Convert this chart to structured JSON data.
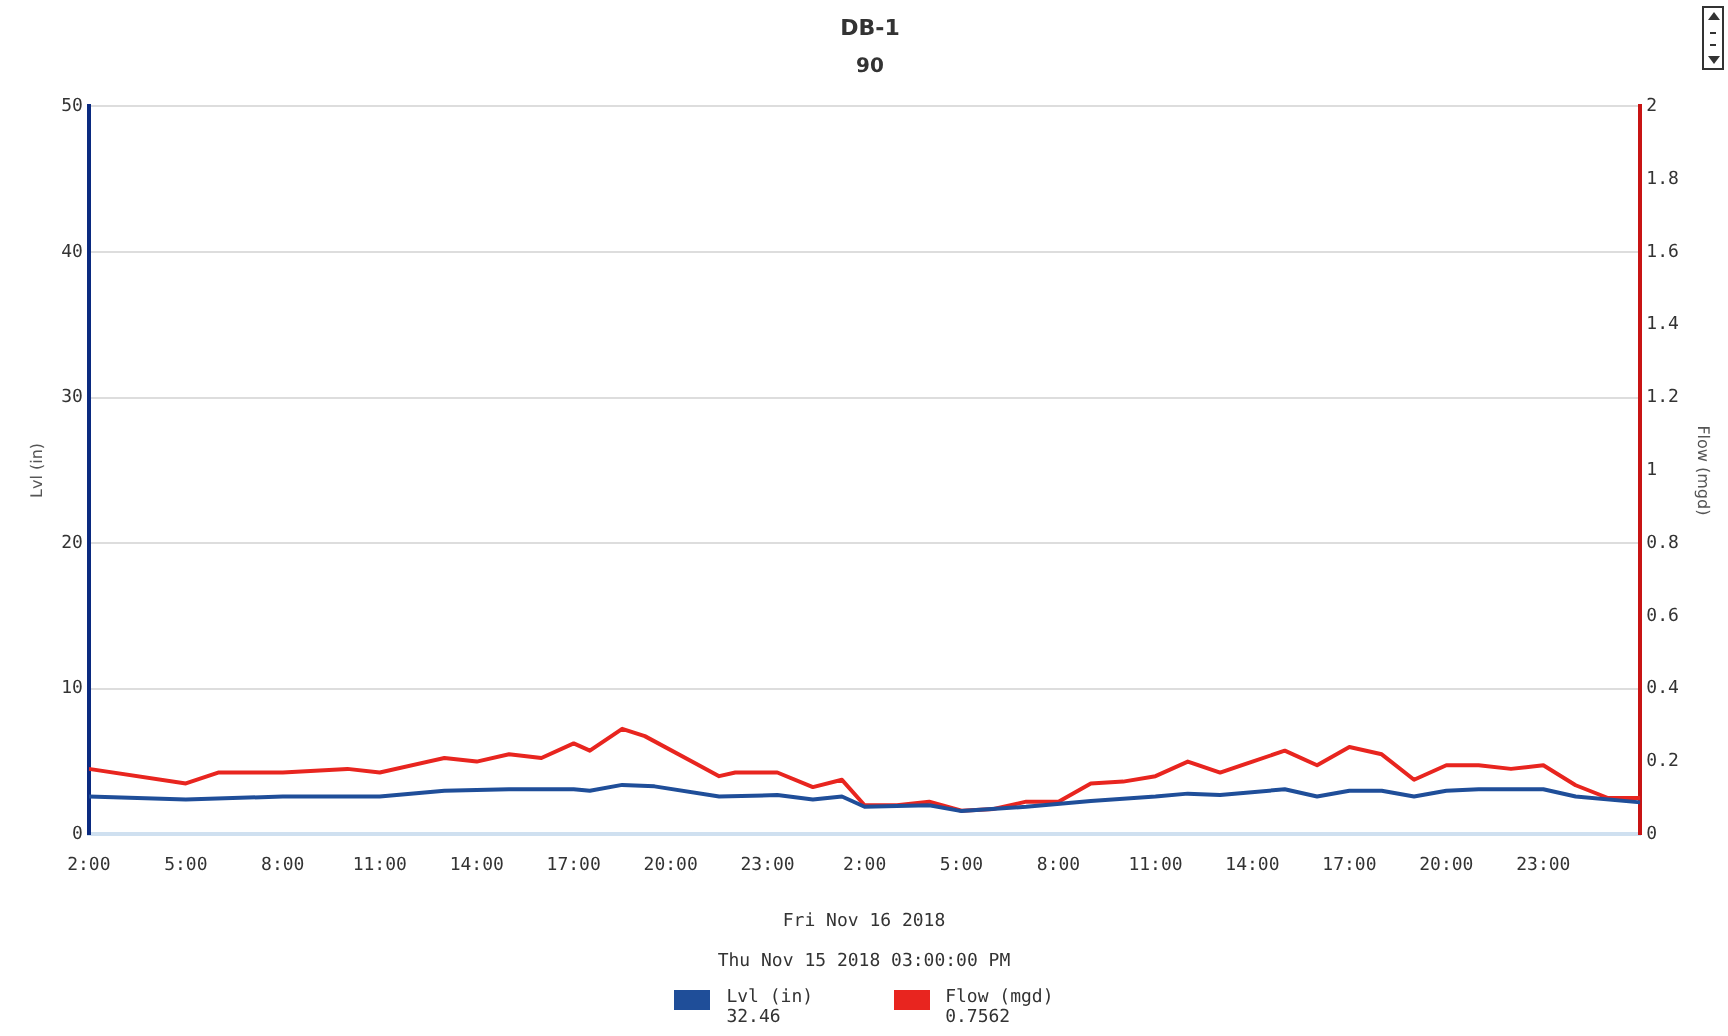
{
  "chart_data": {
    "type": "line",
    "title": "DB-1",
    "subtitle": "90",
    "ylabel": "Lvl (in)",
    "y2label": "Flow (mgd)",
    "xlim": [
      "2018-11-15T02:00",
      "2018-11-17T02:00"
    ],
    "xticks": [
      {
        "value": "2018-11-15T02:00",
        "label": "2:00"
      },
      {
        "value": "2018-11-15T05:00",
        "label": "5:00"
      },
      {
        "value": "2018-11-15T08:00",
        "label": "8:00"
      },
      {
        "value": "2018-11-15T11:00",
        "label": "11:00"
      },
      {
        "value": "2018-11-15T14:00",
        "label": "14:00"
      },
      {
        "value": "2018-11-15T17:00",
        "label": "17:00"
      },
      {
        "value": "2018-11-15T20:00",
        "label": "20:00"
      },
      {
        "value": "2018-11-15T23:00",
        "label": "23:00"
      },
      {
        "value": "2018-11-16T02:00",
        "label": "2:00"
      },
      {
        "value": "2018-11-16T05:00",
        "label": "5:00"
      },
      {
        "value": "2018-11-16T08:00",
        "label": "8:00"
      },
      {
        "value": "2018-11-16T11:00",
        "label": "11:00"
      },
      {
        "value": "2018-11-16T14:00",
        "label": "14:00"
      },
      {
        "value": "2018-11-16T17:00",
        "label": "17:00"
      },
      {
        "value": "2018-11-16T20:00",
        "label": "20:00"
      },
      {
        "value": "2018-11-16T23:00",
        "label": "23:00"
      }
    ],
    "ylim": [
      0,
      50
    ],
    "yticks": [
      0,
      10,
      20,
      30,
      40,
      50
    ],
    "y2lim": [
      0,
      2
    ],
    "y2ticks": [
      0,
      0.2,
      0.4,
      0.6,
      0.8,
      1,
      1.2,
      1.4,
      1.6,
      1.8,
      2
    ],
    "grid": "y",
    "legend": "bottom",
    "marker": "none",
    "line_style": "solid",
    "series": [
      {
        "name": "Lvl (in)",
        "color": "#1f4e99",
        "x": [
          "2018-11-15T02:00",
          "2018-11-15T05:00",
          "2018-11-15T08:00",
          "2018-11-15T11:00",
          "2018-11-15T13:00",
          "2018-11-15T15:00",
          "2018-11-15T17:00",
          "2018-11-15T17:30",
          "2018-11-15T18:30",
          "2018-11-15T19:30",
          "2018-11-15T21:30",
          "2018-11-15T23:18",
          "2018-11-16T00:24",
          "2018-11-16T01:18",
          "2018-11-16T02:00",
          "2018-11-16T04:00",
          "2018-11-16T05:00",
          "2018-11-16T07:00",
          "2018-11-16T09:00",
          "2018-11-16T11:00",
          "2018-11-16T12:00",
          "2018-11-16T13:00",
          "2018-11-16T15:00",
          "2018-11-16T16:00",
          "2018-11-16T17:00",
          "2018-11-16T18:00",
          "2018-11-16T19:00",
          "2018-11-16T20:00",
          "2018-11-16T21:00",
          "2018-11-16T23:00",
          "2018-11-17T00:00",
          "2018-11-17T02:00"
        ],
        "values": [
          2.6,
          2.4,
          2.6,
          2.6,
          3.0,
          3.1,
          3.1,
          3.0,
          3.4,
          3.3,
          2.6,
          2.7,
          2.4,
          2.6,
          1.9,
          2.0,
          1.6,
          1.9,
          2.3,
          2.6,
          2.8,
          2.7,
          3.1,
          2.6,
          3.0,
          3.0,
          2.6,
          3.0,
          3.1,
          3.1,
          2.6,
          2.2
        ]
      },
      {
        "name": "Flow (mgd)",
        "color": "#e8251f",
        "axis": "y2",
        "x": [
          "2018-11-15T02:00",
          "2018-11-15T05:00",
          "2018-11-15T06:00",
          "2018-11-15T08:00",
          "2018-11-15T10:00",
          "2018-11-15T11:00",
          "2018-11-15T13:00",
          "2018-11-15T14:00",
          "2018-11-15T15:00",
          "2018-11-15T16:00",
          "2018-11-15T17:00",
          "2018-11-15T17:30",
          "2018-11-15T18:30",
          "2018-11-15T19:12",
          "2018-11-15T21:30",
          "2018-11-15T22:00",
          "2018-11-15T23:18",
          "2018-11-16T00:24",
          "2018-11-16T01:18",
          "2018-11-16T02:00",
          "2018-11-16T03:00",
          "2018-11-16T04:00",
          "2018-11-16T05:00",
          "2018-11-16T06:00",
          "2018-11-16T07:00",
          "2018-11-16T08:00",
          "2018-11-16T09:00",
          "2018-11-16T10:00",
          "2018-11-16T11:00",
          "2018-11-16T12:00",
          "2018-11-16T13:00",
          "2018-11-16T14:00",
          "2018-11-16T15:00",
          "2018-11-16T16:00",
          "2018-11-16T17:00",
          "2018-11-16T18:00",
          "2018-11-16T19:00",
          "2018-11-16T20:00",
          "2018-11-16T21:00",
          "2018-11-16T22:00",
          "2018-11-16T23:00",
          "2018-11-17T00:00",
          "2018-11-17T01:00",
          "2018-11-17T02:00"
        ],
        "values": [
          0.18,
          0.14,
          0.17,
          0.17,
          0.18,
          0.17,
          0.21,
          0.2,
          0.22,
          0.21,
          0.25,
          0.23,
          0.29,
          0.27,
          0.16,
          0.17,
          0.17,
          0.13,
          0.15,
          0.08,
          0.08,
          0.09,
          0.065,
          0.07,
          0.09,
          0.09,
          0.14,
          0.145,
          0.16,
          0.2,
          0.17,
          0.2,
          0.23,
          0.19,
          0.24,
          0.22,
          0.15,
          0.19,
          0.19,
          0.18,
          0.19,
          0.135,
          0.1,
          0.1
        ]
      }
    ],
    "annotations": [
      "Fri Nov 16 2018",
      "Thu Nov 15 2018 03:00:00 PM",
      "32.46",
      "0.7562"
    ]
  }
}
